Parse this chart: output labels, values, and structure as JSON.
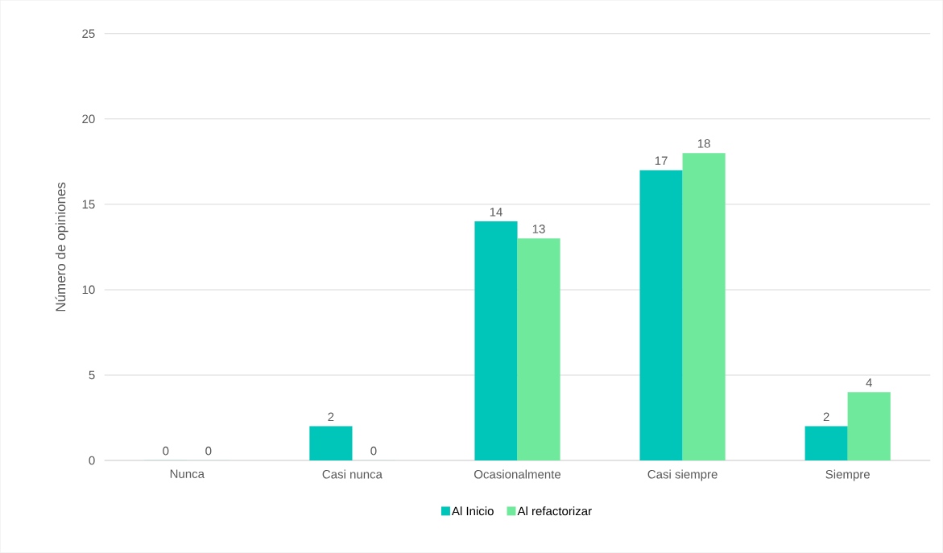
{
  "chart_data": {
    "type": "bar",
    "ylabel": "Número de opiniones",
    "categories": [
      "Nunca",
      "Casi nunca",
      "Ocasionalmente",
      "Casi siempre",
      "Siempre"
    ],
    "series": [
      {
        "name": "Al Inicio",
        "color": "#00c5b9",
        "values": [
          0,
          2,
          14,
          17,
          2
        ]
      },
      {
        "name": "Al refactorizar",
        "color": "#6fe99c",
        "values": [
          0,
          0,
          13,
          18,
          4
        ]
      }
    ],
    "ylim": [
      0,
      25
    ],
    "yticks": [
      0,
      5,
      10,
      15,
      20,
      25
    ],
    "grid": "y",
    "legend": "bottom",
    "data_labels": true
  }
}
